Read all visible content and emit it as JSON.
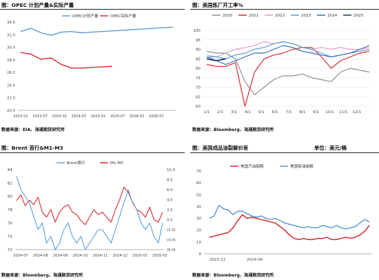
{
  "panels": [
    {
      "title": "图：OPEC 计划产量&实际产量",
      "source": "数据来源：EIA、海通期货研究所"
    },
    {
      "title": "图：美国炼厂开工率%",
      "source": "数据来源：Bloomberg、海通期货研究所"
    },
    {
      "title": "图：Brent 首行&M1-M3",
      "source": "数据来源：Bloomberg、海通期货研究所"
    },
    {
      "title": "图：美国成品油裂解价差",
      "unit": "单位：美元/桶",
      "source": "数据来源：Bloomberg、海通期货研究所"
    }
  ],
  "chart_data": [
    {
      "type": "line",
      "x": [
        "2023-01",
        "2023-04",
        "2023-07",
        "2023-10",
        "2024-01",
        "2024-04",
        "2024-07",
        "2024-10",
        "2025-01",
        "2025-04",
        "2025-07",
        "2025-10",
        "2026-01",
        "2026-04",
        "2026-07",
        "2026-10"
      ],
      "x_ticks": [
        "2023-01",
        "2023-07",
        "2024-01",
        "2024-07",
        "2025-01",
        "2025-07",
        "2026-01",
        "2026-07"
      ],
      "ylim": [
        20,
        34
      ],
      "y_ticks": [
        "20.0",
        "22.0",
        "24.0",
        "26.0",
        "28.0",
        "30.0",
        "32.0",
        "34.0"
      ],
      "legend_position": "top",
      "series": [
        {
          "name": "OPEC计划产量",
          "color": "#5b9bd5",
          "values": [
            32.5,
            33.0,
            32.3,
            31.9,
            32.4,
            32.5,
            32.3,
            32.4,
            32.5,
            32.6,
            32.7,
            32.8,
            32.9,
            33.0,
            33.1,
            33.2
          ]
        },
        {
          "name": "OPEC实际产量",
          "color": "#d9262c",
          "values": [
            29.2,
            28.9,
            28.1,
            28.3,
            27.3,
            26.7,
            26.7,
            26.8,
            26.9,
            27.0,
            null,
            null,
            null,
            null,
            null,
            null
          ]
        }
      ]
    },
    {
      "type": "line",
      "x_ticks": [
        "1/1",
        "2/1",
        "3/1",
        "4/1",
        "5/1",
        "6/1",
        "7/1",
        "8/1",
        "9/1",
        "10/1",
        "11/1",
        "12/1"
      ],
      "ylim": [
        60,
        100
      ],
      "y_ticks": [
        "60",
        "65",
        "70",
        "75",
        "80",
        "85",
        "90",
        "95",
        "100"
      ],
      "legend_position": "top",
      "series": [
        {
          "name": "2020",
          "color": "#8c8c8c",
          "values": [
            89,
            88,
            88,
            85,
            73,
            66,
            70,
            74,
            76,
            76,
            77,
            75,
            74,
            73,
            78,
            80,
            79,
            78
          ]
        },
        {
          "name": "2021",
          "color": "#d9262c",
          "values": [
            82,
            81,
            81,
            83,
            60,
            78,
            85,
            87,
            88,
            90,
            91,
            91,
            86,
            80,
            84,
            86,
            88,
            89
          ]
        },
        {
          "name": "2022",
          "color": "#e89ac7",
          "values": [
            87,
            86,
            88,
            90,
            91,
            92,
            94,
            93,
            94,
            93,
            91,
            90,
            91,
            90,
            91,
            90,
            90,
            91
          ]
        },
        {
          "name": "2023",
          "color": "#5b9bd5",
          "values": [
            86,
            86,
            85,
            87,
            88,
            90,
            91,
            93,
            94,
            93,
            91,
            90,
            88,
            86,
            87,
            88,
            89,
            90
          ]
        },
        {
          "name": "2024",
          "color": "#2f6cb5",
          "values": [
            86,
            84,
            82,
            84,
            86,
            88,
            88,
            90,
            92,
            91,
            89,
            88,
            87,
            86,
            87,
            88,
            90,
            92
          ]
        },
        {
          "name": "2025",
          "color": "#1f3864",
          "values": [
            85,
            84,
            85,
            null,
            null,
            null,
            null,
            null,
            null,
            null,
            null,
            null,
            null,
            null,
            null,
            null,
            null,
            null
          ]
        }
      ]
    },
    {
      "type": "line",
      "x_ticks": [
        "2024-07",
        "2024-08",
        "2024-09",
        "2024-10",
        "2024-11",
        "2024-12",
        "2025-01",
        "2025-02"
      ],
      "ylim_left": [
        72,
        84
      ],
      "y_ticks_left": [
        "72",
        "74",
        "76",
        "78",
        "80",
        "82",
        "84"
      ],
      "ylim_right": [
        -6.0,
        10.0
      ],
      "y_ticks_right": [
        "(6.0)",
        "(4.0)",
        "(2.0)",
        "0.0",
        "2.0",
        "4.0",
        "6.0",
        "8.0",
        "10.0"
      ],
      "legend_position": "top",
      "series": [
        {
          "name": "Brent首行",
          "color": "#5b9bd5",
          "axis": "left",
          "values": [
            83,
            81,
            80,
            79,
            77,
            75,
            76,
            73,
            74,
            72,
            73,
            75,
            76,
            74,
            73,
            74,
            72,
            73,
            74,
            75,
            75,
            74,
            73,
            75,
            77,
            79,
            81,
            79,
            78,
            76,
            75,
            76,
            74,
            73,
            76
          ]
        },
        {
          "name": "M1-M3",
          "color": "#d9262c",
          "axis": "right",
          "values": [
            3.8,
            5.0,
            2.8,
            3.9,
            3.0,
            4.5,
            1.5,
            0.5,
            2.0,
            -0.5,
            1.5,
            2.5,
            3.0,
            1.5,
            1.0,
            -0.2,
            -1.0,
            0.5,
            2.0,
            1.0,
            1.5,
            0.5,
            -0.5,
            2.0,
            4.0,
            6.5,
            5.5,
            3.5,
            2.0,
            1.5,
            0.5,
            2.5,
            0.0,
            -0.5,
            1.5
          ]
        }
      ]
    },
    {
      "type": "line",
      "x_ticks": [
        "2023-12",
        "2024-06"
      ],
      "ylim": [
        0,
        70
      ],
      "y_ticks": [
        "0",
        "10",
        "20",
        "30",
        "40",
        "50",
        "60",
        "70"
      ],
      "legend_position": "top-left",
      "series": [
        {
          "name": "美国汽油裂解",
          "color": "#d9262c",
          "values": [
            14,
            15,
            16,
            17,
            18,
            22,
            28,
            33,
            30,
            31,
            30,
            29,
            28,
            27,
            26,
            23,
            20,
            16,
            13,
            12,
            13,
            12,
            12,
            13,
            13,
            14,
            12,
            12,
            13,
            14,
            13,
            14,
            16,
            19,
            24
          ]
        },
        {
          "name": "美国柴油裂解",
          "color": "#5b9bd5",
          "values": [
            30,
            32,
            41,
            38,
            37,
            33,
            36,
            36,
            34,
            32,
            31,
            32,
            30,
            29,
            30,
            28,
            26,
            25,
            24,
            23,
            22,
            23,
            22,
            22,
            24,
            23,
            22,
            24,
            22,
            21,
            22,
            23,
            26,
            29,
            27
          ]
        }
      ]
    }
  ]
}
